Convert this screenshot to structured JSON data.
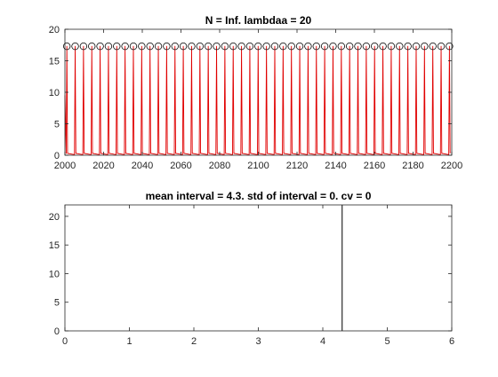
{
  "colors": {
    "signal": "#e00000",
    "marker": "#000000",
    "histogram": "#000000",
    "axis": "#262626"
  },
  "chart_data": [
    {
      "type": "line",
      "title": "N = Inf. lambdaa = 20",
      "xlabel": "",
      "ylabel": "",
      "xlim": [
        2000,
        2200
      ],
      "ylim": [
        0,
        20
      ],
      "xticks": [
        "2000",
        "2020",
        "2040",
        "2060",
        "2080",
        "2100",
        "2120",
        "2140",
        "2160",
        "2180",
        "2200"
      ],
      "yticks": [
        "0",
        "5",
        "10",
        "15",
        "20"
      ],
      "series": [
        {
          "type": "line",
          "color": "#e00000",
          "peak_value": 17.3,
          "period": 4.3,
          "first_peak": 2001.0,
          "baseline": 0
        },
        {
          "type": "scatter",
          "marker": "circle-open",
          "color": "#000000",
          "y": 17.3,
          "period": 4.3,
          "first_x": 2001.0
        }
      ],
      "grid": false
    },
    {
      "type": "bar",
      "title": "mean interval = 4.3. std of interval = 0. cv = 0",
      "xlabel": "",
      "ylabel": "",
      "xlim": [
        0,
        6
      ],
      "ylim": [
        0,
        22
      ],
      "xticks": [
        "0",
        "1",
        "2",
        "3",
        "4",
        "5",
        "6"
      ],
      "yticks": [
        "0",
        "5",
        "10",
        "15",
        "20"
      ],
      "bins": [
        {
          "x": 4.3,
          "count": 22
        }
      ],
      "grid": false
    }
  ]
}
